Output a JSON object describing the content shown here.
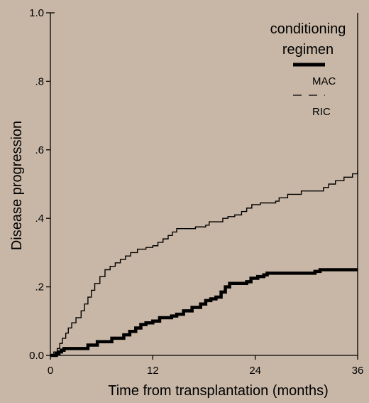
{
  "chart_data": {
    "type": "line",
    "title": "",
    "xlabel": "Time from transplantation (months)",
    "ylabel": "Disease progression",
    "xlim": [
      0,
      36
    ],
    "ylim": [
      0,
      1
    ],
    "x_ticks": [
      0,
      12,
      24,
      36
    ],
    "x_tick_labels": [
      "0",
      "12",
      "24",
      "36"
    ],
    "y_ticks": [
      0,
      0.2,
      0.4,
      0.6,
      0.8,
      1.0
    ],
    "y_tick_labels": [
      "0.0",
      ".2",
      ".4",
      ".6",
      ".8",
      "1.0"
    ],
    "grid": false,
    "legend": {
      "title_line1": "conditioning",
      "title_line2": "regimen",
      "placement": "top-right"
    },
    "series": [
      {
        "name": "MAC",
        "style": "thick-solid",
        "color": "#000000",
        "step": true,
        "points": [
          [
            0,
            0
          ],
          [
            0.6,
            0
          ],
          [
            0.7,
            0.005
          ],
          [
            1.0,
            0.01
          ],
          [
            1.3,
            0.015
          ],
          [
            1.6,
            0.02
          ],
          [
            4.0,
            0.02
          ],
          [
            4.4,
            0.03
          ],
          [
            5.5,
            0.04
          ],
          [
            7.2,
            0.05
          ],
          [
            8.6,
            0.06
          ],
          [
            9.3,
            0.07
          ],
          [
            10.0,
            0.08
          ],
          [
            10.6,
            0.09
          ],
          [
            11.2,
            0.095
          ],
          [
            12.0,
            0.1
          ],
          [
            12.8,
            0.11
          ],
          [
            14.2,
            0.115
          ],
          [
            14.8,
            0.12
          ],
          [
            15.6,
            0.13
          ],
          [
            16.6,
            0.14
          ],
          [
            17.6,
            0.15
          ],
          [
            18.2,
            0.16
          ],
          [
            18.8,
            0.165
          ],
          [
            19.4,
            0.17
          ],
          [
            20.0,
            0.185
          ],
          [
            20.5,
            0.2
          ],
          [
            21.0,
            0.21
          ],
          [
            23.0,
            0.215
          ],
          [
            23.5,
            0.225
          ],
          [
            24.3,
            0.23
          ],
          [
            25.0,
            0.235
          ],
          [
            25.4,
            0.24
          ],
          [
            31.0,
            0.245
          ],
          [
            31.6,
            0.25
          ],
          [
            36,
            0.25
          ]
        ]
      },
      {
        "name": "RIC",
        "style": "thin-solid",
        "color": "#000000",
        "step": true,
        "points": [
          [
            0,
            0
          ],
          [
            0.4,
            0.01
          ],
          [
            0.8,
            0.02
          ],
          [
            1.1,
            0.035
          ],
          [
            1.4,
            0.05
          ],
          [
            1.8,
            0.065
          ],
          [
            2.1,
            0.08
          ],
          [
            2.5,
            0.095
          ],
          [
            3.0,
            0.11
          ],
          [
            3.6,
            0.13
          ],
          [
            4.0,
            0.15
          ],
          [
            4.4,
            0.17
          ],
          [
            4.8,
            0.19
          ],
          [
            5.2,
            0.21
          ],
          [
            5.8,
            0.23
          ],
          [
            6.4,
            0.25
          ],
          [
            7.0,
            0.26
          ],
          [
            7.6,
            0.27
          ],
          [
            8.2,
            0.28
          ],
          [
            8.8,
            0.29
          ],
          [
            9.4,
            0.3
          ],
          [
            10.2,
            0.31
          ],
          [
            11.2,
            0.315
          ],
          [
            12.0,
            0.32
          ],
          [
            12.6,
            0.33
          ],
          [
            13.2,
            0.34
          ],
          [
            13.8,
            0.35
          ],
          [
            14.3,
            0.36
          ],
          [
            14.8,
            0.37
          ],
          [
            17.0,
            0.375
          ],
          [
            18.2,
            0.38
          ],
          [
            18.6,
            0.39
          ],
          [
            20.2,
            0.4
          ],
          [
            20.8,
            0.405
          ],
          [
            21.6,
            0.41
          ],
          [
            22.4,
            0.42
          ],
          [
            23.0,
            0.43
          ],
          [
            23.6,
            0.44
          ],
          [
            24.6,
            0.445
          ],
          [
            26.4,
            0.45
          ],
          [
            26.8,
            0.46
          ],
          [
            27.8,
            0.47
          ],
          [
            29.4,
            0.48
          ],
          [
            32.0,
            0.49
          ],
          [
            32.6,
            0.5
          ],
          [
            33.4,
            0.51
          ],
          [
            34.4,
            0.52
          ],
          [
            35.4,
            0.53
          ],
          [
            36,
            0.54
          ]
        ]
      }
    ]
  }
}
